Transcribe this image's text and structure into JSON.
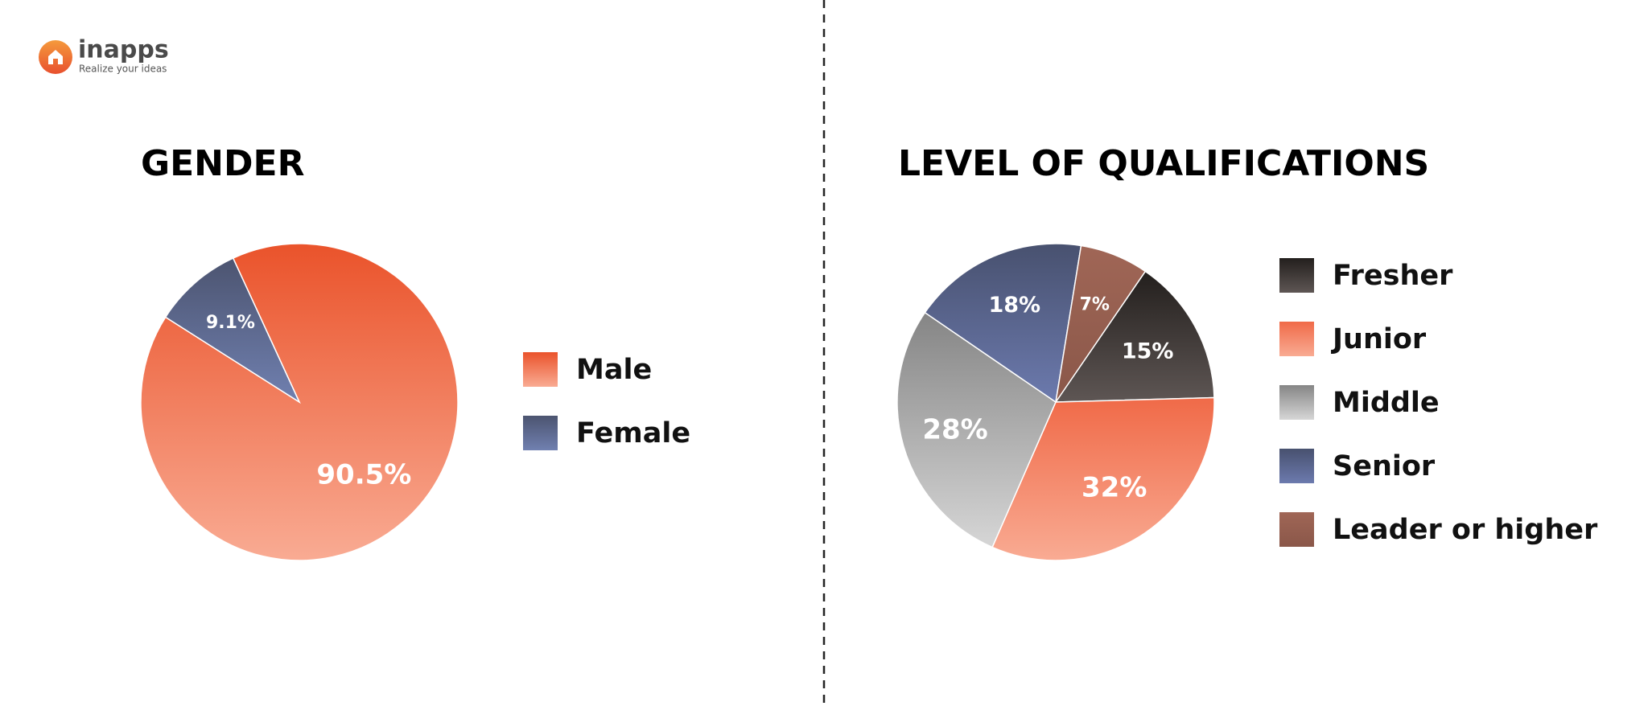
{
  "logo": {
    "name": "inapps",
    "tagline": "Realize your ideas"
  },
  "chart_data": [
    {
      "type": "pie",
      "title": "GENDER",
      "categories": [
        "Male",
        "Female"
      ],
      "values": [
        90.5,
        9.1
      ],
      "value_labels": [
        "90.5%",
        "9.1%"
      ],
      "colors": [
        [
          "#ea532b",
          "#f9ab93"
        ],
        [
          "#4c5470",
          "#7080b0"
        ]
      ]
    },
    {
      "type": "pie",
      "title": "LEVEL OF QUALIFICATIONS",
      "categories": [
        "Fresher",
        "Junior",
        "Middle",
        "Senior",
        "Leader or higher"
      ],
      "values": [
        15,
        32,
        28,
        18,
        7
      ],
      "value_labels": [
        "15%",
        "32%",
        "28%",
        "18%",
        "7%"
      ],
      "colors": [
        [
          "#231f1d",
          "#5e5654"
        ],
        [
          "#f06a48",
          "#f9ab93"
        ],
        [
          "#858585",
          "#d6d6d6"
        ],
        [
          "#48516f",
          "#6c7aae"
        ],
        [
          "#a06656",
          "#8a5749"
        ]
      ]
    }
  ]
}
